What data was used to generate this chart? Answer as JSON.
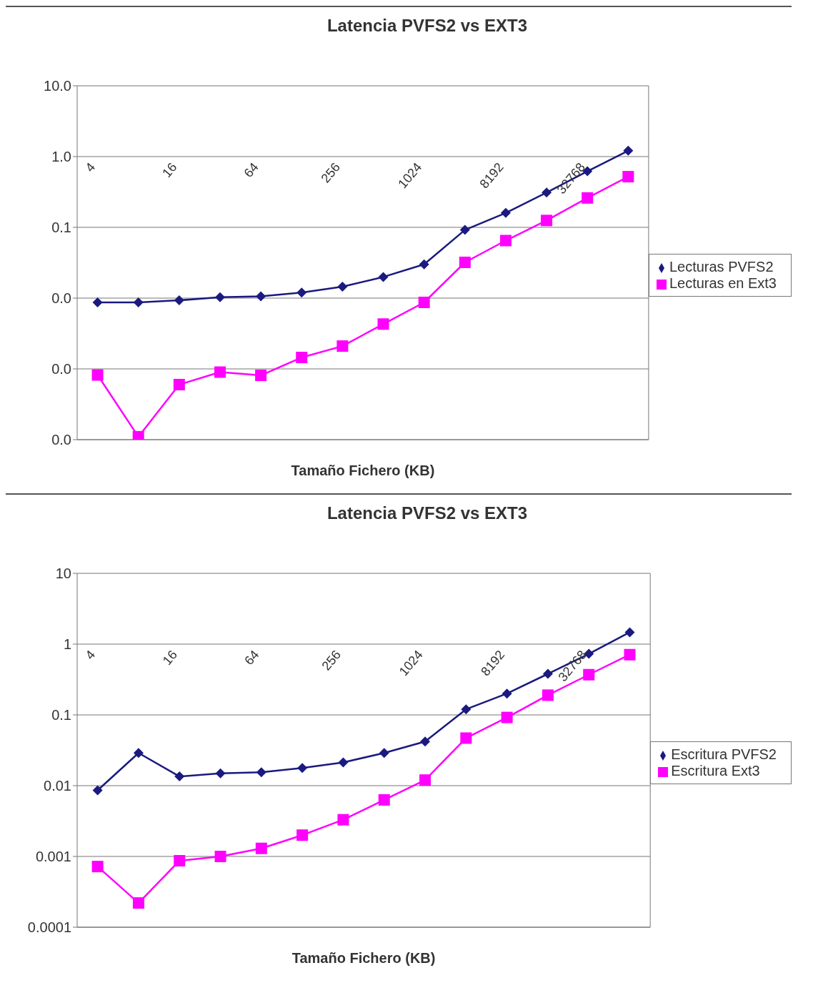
{
  "chart_data": [
    {
      "type": "line",
      "title": "Latencia PVFS2 vs EXT3",
      "xlabel": "Tamaño Fichero (KB)",
      "categories": [
        "4",
        null,
        "16",
        null,
        "64",
        null,
        "256",
        null,
        "1024",
        null,
        "8192",
        null,
        "32768",
        null
      ],
      "log": "y",
      "ylim": [
        0.0001,
        10
      ],
      "yticks": [
        {
          "value": 10,
          "label": "10.0"
        },
        {
          "value": 1,
          "label": "1.0"
        },
        {
          "value": 0.1,
          "label": "0.1"
        },
        {
          "value": 0.01,
          "label": "0.0"
        },
        {
          "value": 0.001,
          "label": "0.0"
        },
        {
          "value": 0.0001,
          "label": "0.0"
        }
      ],
      "grid": "y",
      "legend": "right",
      "series": [
        {
          "name": "Lecturas PVFS2",
          "color": "#1a1a80",
          "marker": "diamond",
          "values": [
            0.0087,
            0.0087,
            0.0093,
            0.0103,
            0.0106,
            0.012,
            0.0145,
            0.0199,
            0.03,
            0.092,
            0.16,
            0.31,
            0.62,
            1.21
          ]
        },
        {
          "name": "Lecturas en Ext3",
          "color": "#ff00ff",
          "marker": "square",
          "values": [
            0.00082,
            0.00011,
            0.0006,
            0.0009,
            0.00081,
            0.00145,
            0.0021,
            0.0043,
            0.0087,
            0.032,
            0.065,
            0.125,
            0.26,
            0.52
          ]
        }
      ]
    },
    {
      "type": "line",
      "title": "Latencia PVFS2 vs EXT3",
      "xlabel": "Tamaño Fichero (KB)",
      "categories": [
        "4",
        null,
        "16",
        null,
        "64",
        null,
        "256",
        null,
        "1024",
        null,
        "8192",
        null,
        "32768",
        null
      ],
      "log": "y",
      "ylim": [
        0.0001,
        10
      ],
      "yticks": [
        10,
        1,
        0.1,
        0.01,
        0.001,
        0.0001
      ],
      "grid": "y",
      "legend": "right",
      "series": [
        {
          "name": "Escritura PVFS2",
          "color": "#1a1a80",
          "marker": "diamond",
          "values": [
            0.0086,
            0.029,
            0.0135,
            0.0149,
            0.0155,
            0.0178,
            0.0213,
            0.029,
            0.042,
            0.12,
            0.2,
            0.38,
            0.73,
            1.47
          ]
        },
        {
          "name": "Escritura Ext3",
          "color": "#ff00ff",
          "marker": "square",
          "values": [
            0.00072,
            0.00022,
            0.00087,
            0.001,
            0.0013,
            0.002,
            0.0033,
            0.0063,
            0.012,
            0.047,
            0.092,
            0.19,
            0.37,
            0.71
          ]
        }
      ]
    }
  ]
}
